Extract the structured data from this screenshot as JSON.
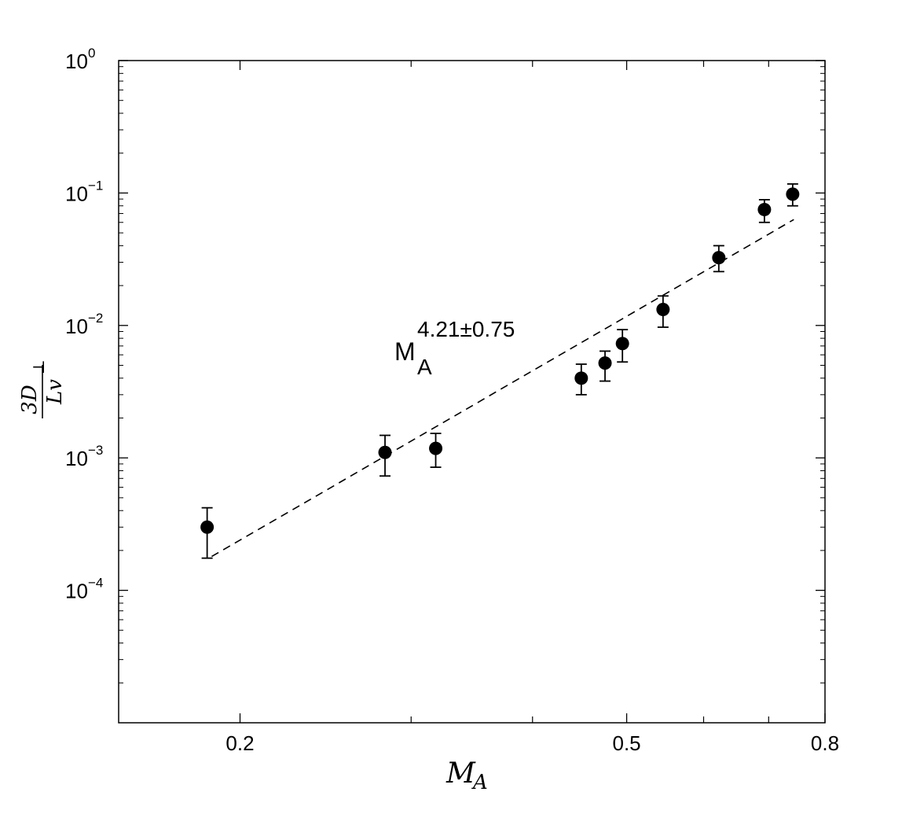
{
  "chart_data": {
    "type": "scatter",
    "xscale": "log",
    "yscale": "log",
    "xlim": [
      0.15,
      0.8
    ],
    "ylim": [
      1e-05,
      1
    ],
    "x_ticks": [
      {
        "value": 0.2,
        "label": "0.2"
      },
      {
        "value": 0.5,
        "label": "0.5"
      },
      {
        "value": 0.8,
        "label": "0.8"
      }
    ],
    "y_ticks": [
      {
        "value": 0.0001,
        "base": "10",
        "exp": "−4"
      },
      {
        "value": 0.001,
        "base": "10",
        "exp": "−3"
      },
      {
        "value": 0.01,
        "base": "10",
        "exp": "−2"
      },
      {
        "value": 0.1,
        "base": "10",
        "exp": "−1"
      },
      {
        "value": 1,
        "base": "10",
        "exp": "0"
      }
    ],
    "xlabel": {
      "main": "M",
      "sub": "A"
    },
    "ylabel": {
      "numerator": "3D",
      "num_sub": "⊥",
      "denominator": "Lv"
    },
    "series": [
      {
        "marker": "filled-circle",
        "color": "#000000",
        "points": [
          {
            "x": 0.185,
            "y": 0.0003,
            "ylo": 0.000175,
            "yhi": 0.00042
          },
          {
            "x": 0.282,
            "y": 0.0011,
            "ylo": 0.00073,
            "yhi": 0.00148
          },
          {
            "x": 0.318,
            "y": 0.00118,
            "ylo": 0.00085,
            "yhi": 0.00153
          },
          {
            "x": 0.449,
            "y": 0.004,
            "ylo": 0.003,
            "yhi": 0.0051
          },
          {
            "x": 0.475,
            "y": 0.0052,
            "ylo": 0.0038,
            "yhi": 0.0064
          },
          {
            "x": 0.495,
            "y": 0.0073,
            "ylo": 0.0053,
            "yhi": 0.0093
          },
          {
            "x": 0.545,
            "y": 0.0132,
            "ylo": 0.0097,
            "yhi": 0.0167
          },
          {
            "x": 0.622,
            "y": 0.0325,
            "ylo": 0.0255,
            "yhi": 0.04
          },
          {
            "x": 0.693,
            "y": 0.075,
            "ylo": 0.06,
            "yhi": 0.089
          },
          {
            "x": 0.741,
            "y": 0.098,
            "ylo": 0.08,
            "yhi": 0.117
          }
        ]
      }
    ],
    "fit_line": {
      "style": "dashed",
      "color": "#000000",
      "x0": 0.187,
      "y0": 0.00018,
      "x1": 0.743,
      "y1": 0.063
    },
    "annotation": {
      "base": "M",
      "sub": "A",
      "sup": "4.21±0.75"
    },
    "grid": false
  }
}
